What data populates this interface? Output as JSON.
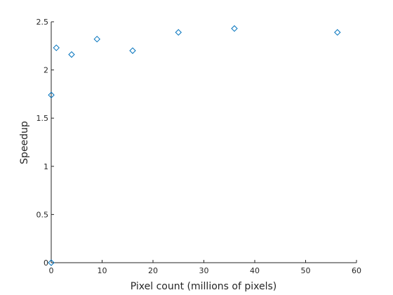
{
  "chart_data": {
    "type": "scatter",
    "title": "",
    "xlabel": "Pixel count (millions of pixels)",
    "ylabel": "Speedup",
    "xlim": [
      0,
      60
    ],
    "ylim": [
      0,
      2.5
    ],
    "x_ticks": [
      0,
      10,
      20,
      30,
      40,
      50,
      60
    ],
    "x_tick_labels": [
      "0",
      "10",
      "20",
      "30",
      "40",
      "50",
      "60"
    ],
    "y_ticks": [
      0,
      0.5,
      1,
      1.5,
      2,
      2.5
    ],
    "y_tick_labels": [
      "0",
      "0.5",
      "1",
      "1.5",
      "2",
      "2.5"
    ],
    "grid": false,
    "marker": "diamond",
    "marker_color": "#0072bd",
    "axis_color": "#262626",
    "series": [
      {
        "x": [
          0,
          0.01,
          1,
          4,
          9,
          16,
          25,
          36,
          56.25
        ],
        "y": [
          0,
          1.74,
          2.23,
          2.16,
          2.32,
          2.2,
          2.39,
          2.43,
          2.39
        ]
      }
    ]
  }
}
